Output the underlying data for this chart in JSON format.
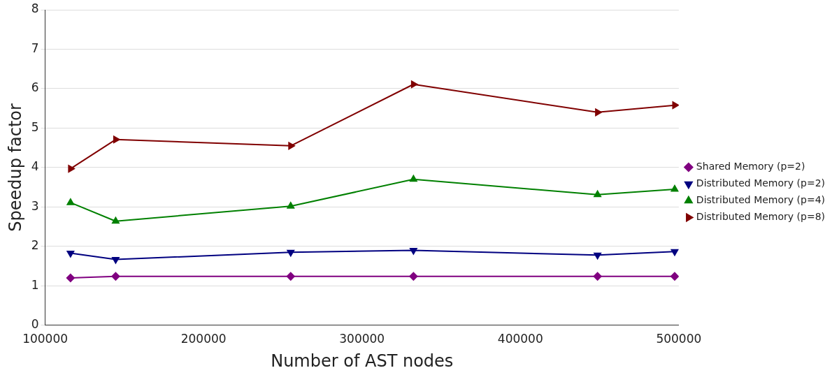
{
  "chart_data": {
    "type": "line",
    "xlabel": "Number of AST nodes",
    "ylabel": "Speedup factor",
    "x": [
      116000,
      144500,
      255000,
      332500,
      448700,
      497400
    ],
    "xlim": [
      100000,
      500000
    ],
    "xticks": [
      100000,
      200000,
      300000,
      400000,
      500000
    ],
    "ylim": [
      0,
      8
    ],
    "yticks": [
      0,
      1,
      2,
      3,
      4,
      5,
      6,
      7,
      8
    ],
    "grid": "y",
    "legend": "right",
    "line_style": "solid",
    "series": [
      {
        "name": "Shared Memory (p=2)",
        "color": "#800080",
        "marker": "diamond",
        "values": [
          1.2,
          1.24,
          1.24,
          1.24,
          1.24,
          1.24
        ]
      },
      {
        "name": "Distributed Memory (p=2)",
        "color": "#000080",
        "marker": "triangle-down",
        "values": [
          1.83,
          1.67,
          1.85,
          1.9,
          1.78,
          1.87
        ]
      },
      {
        "name": "Distributed Memory (p=4)",
        "color": "#008000",
        "marker": "triangle",
        "values": [
          3.11,
          2.64,
          3.02,
          3.7,
          3.31,
          3.45
        ]
      },
      {
        "name": "Distributed Memory (p=8)",
        "color": "#800000",
        "marker": "triangle-right",
        "values": [
          3.97,
          4.71,
          4.55,
          6.11,
          5.4,
          5.58
        ]
      }
    ]
  }
}
